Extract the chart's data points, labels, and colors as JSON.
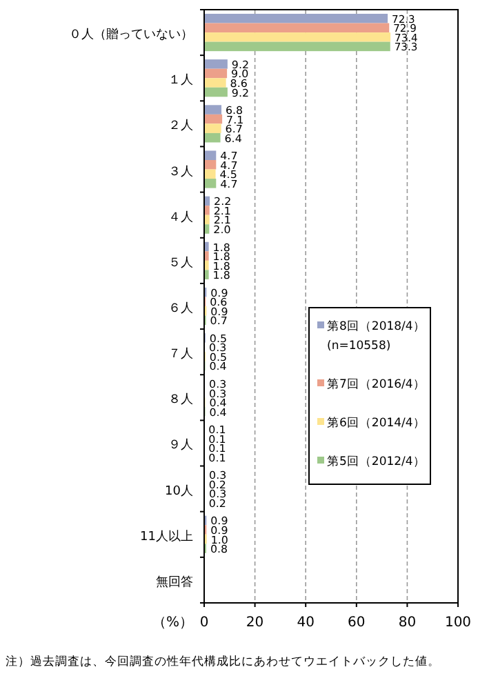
{
  "chart_data": {
    "type": "bar",
    "orientation": "horizontal",
    "categories": [
      "０人（贈っていない）",
      "１人",
      "２人",
      "３人",
      "４人",
      "５人",
      "６人",
      "７人",
      "８人",
      "９人",
      "10人",
      "11人以上",
      "無回答"
    ],
    "series": [
      {
        "name": "第8回（2018/4）\n(n=10558)",
        "color": "#99a3c8",
        "values": [
          72.3,
          9.2,
          6.8,
          4.7,
          2.2,
          1.8,
          0.9,
          0.5,
          0.3,
          0.1,
          0.3,
          0.9,
          null
        ],
        "value_labels": [
          "72.3",
          "9.2",
          "6.8",
          "4.7",
          "2.2",
          "1.8",
          "0.9",
          "0.5",
          "0.3",
          "0.1",
          "0.3",
          "0.9",
          null
        ]
      },
      {
        "name": "第7回（2016/4）",
        "color": "#eca08a",
        "values": [
          72.9,
          9.0,
          7.1,
          4.7,
          2.1,
          1.8,
          0.6,
          0.3,
          0.3,
          0.1,
          0.2,
          0.9,
          null
        ],
        "value_labels": [
          "72.9",
          "9.0",
          "7.1",
          "4.7",
          "2.1",
          "1.8",
          "0.6",
          "0.3",
          "0.3",
          "0.1",
          "0.2",
          "0.9",
          null
        ]
      },
      {
        "name": "第6回（2014/4）",
        "color": "#fde48f",
        "values": [
          73.4,
          8.6,
          6.7,
          4.5,
          2.1,
          1.8,
          0.9,
          0.5,
          0.4,
          0.1,
          0.3,
          1.0,
          null
        ],
        "value_labels": [
          "73.4",
          "8.6",
          "6.7",
          "4.5",
          "2.1",
          "1.8",
          "0.9",
          "0.5",
          "0.4",
          "0.1",
          "0.3",
          "1.0",
          null
        ]
      },
      {
        "name": "第5回（2012/4）",
        "color": "#9ec98a",
        "values": [
          73.3,
          9.2,
          6.4,
          4.7,
          2.0,
          1.8,
          0.7,
          0.4,
          0.4,
          0.1,
          0.2,
          0.8,
          null
        ],
        "value_labels": [
          "73.3",
          "9.2",
          "6.4",
          "4.7",
          "2.0",
          "1.8",
          "0.7",
          "0.4",
          "0.4",
          "0.1",
          "0.2",
          "0.8",
          null
        ]
      }
    ],
    "xlim": [
      0,
      100
    ],
    "xticks": [
      0,
      20,
      40,
      60,
      80,
      100
    ],
    "xlabel": "（%）",
    "grid": "x",
    "legend": "right",
    "annotations": [
      "注）過去調査は、今回調査の性年代構成比にあわせてウエイトバックした値。"
    ]
  }
}
